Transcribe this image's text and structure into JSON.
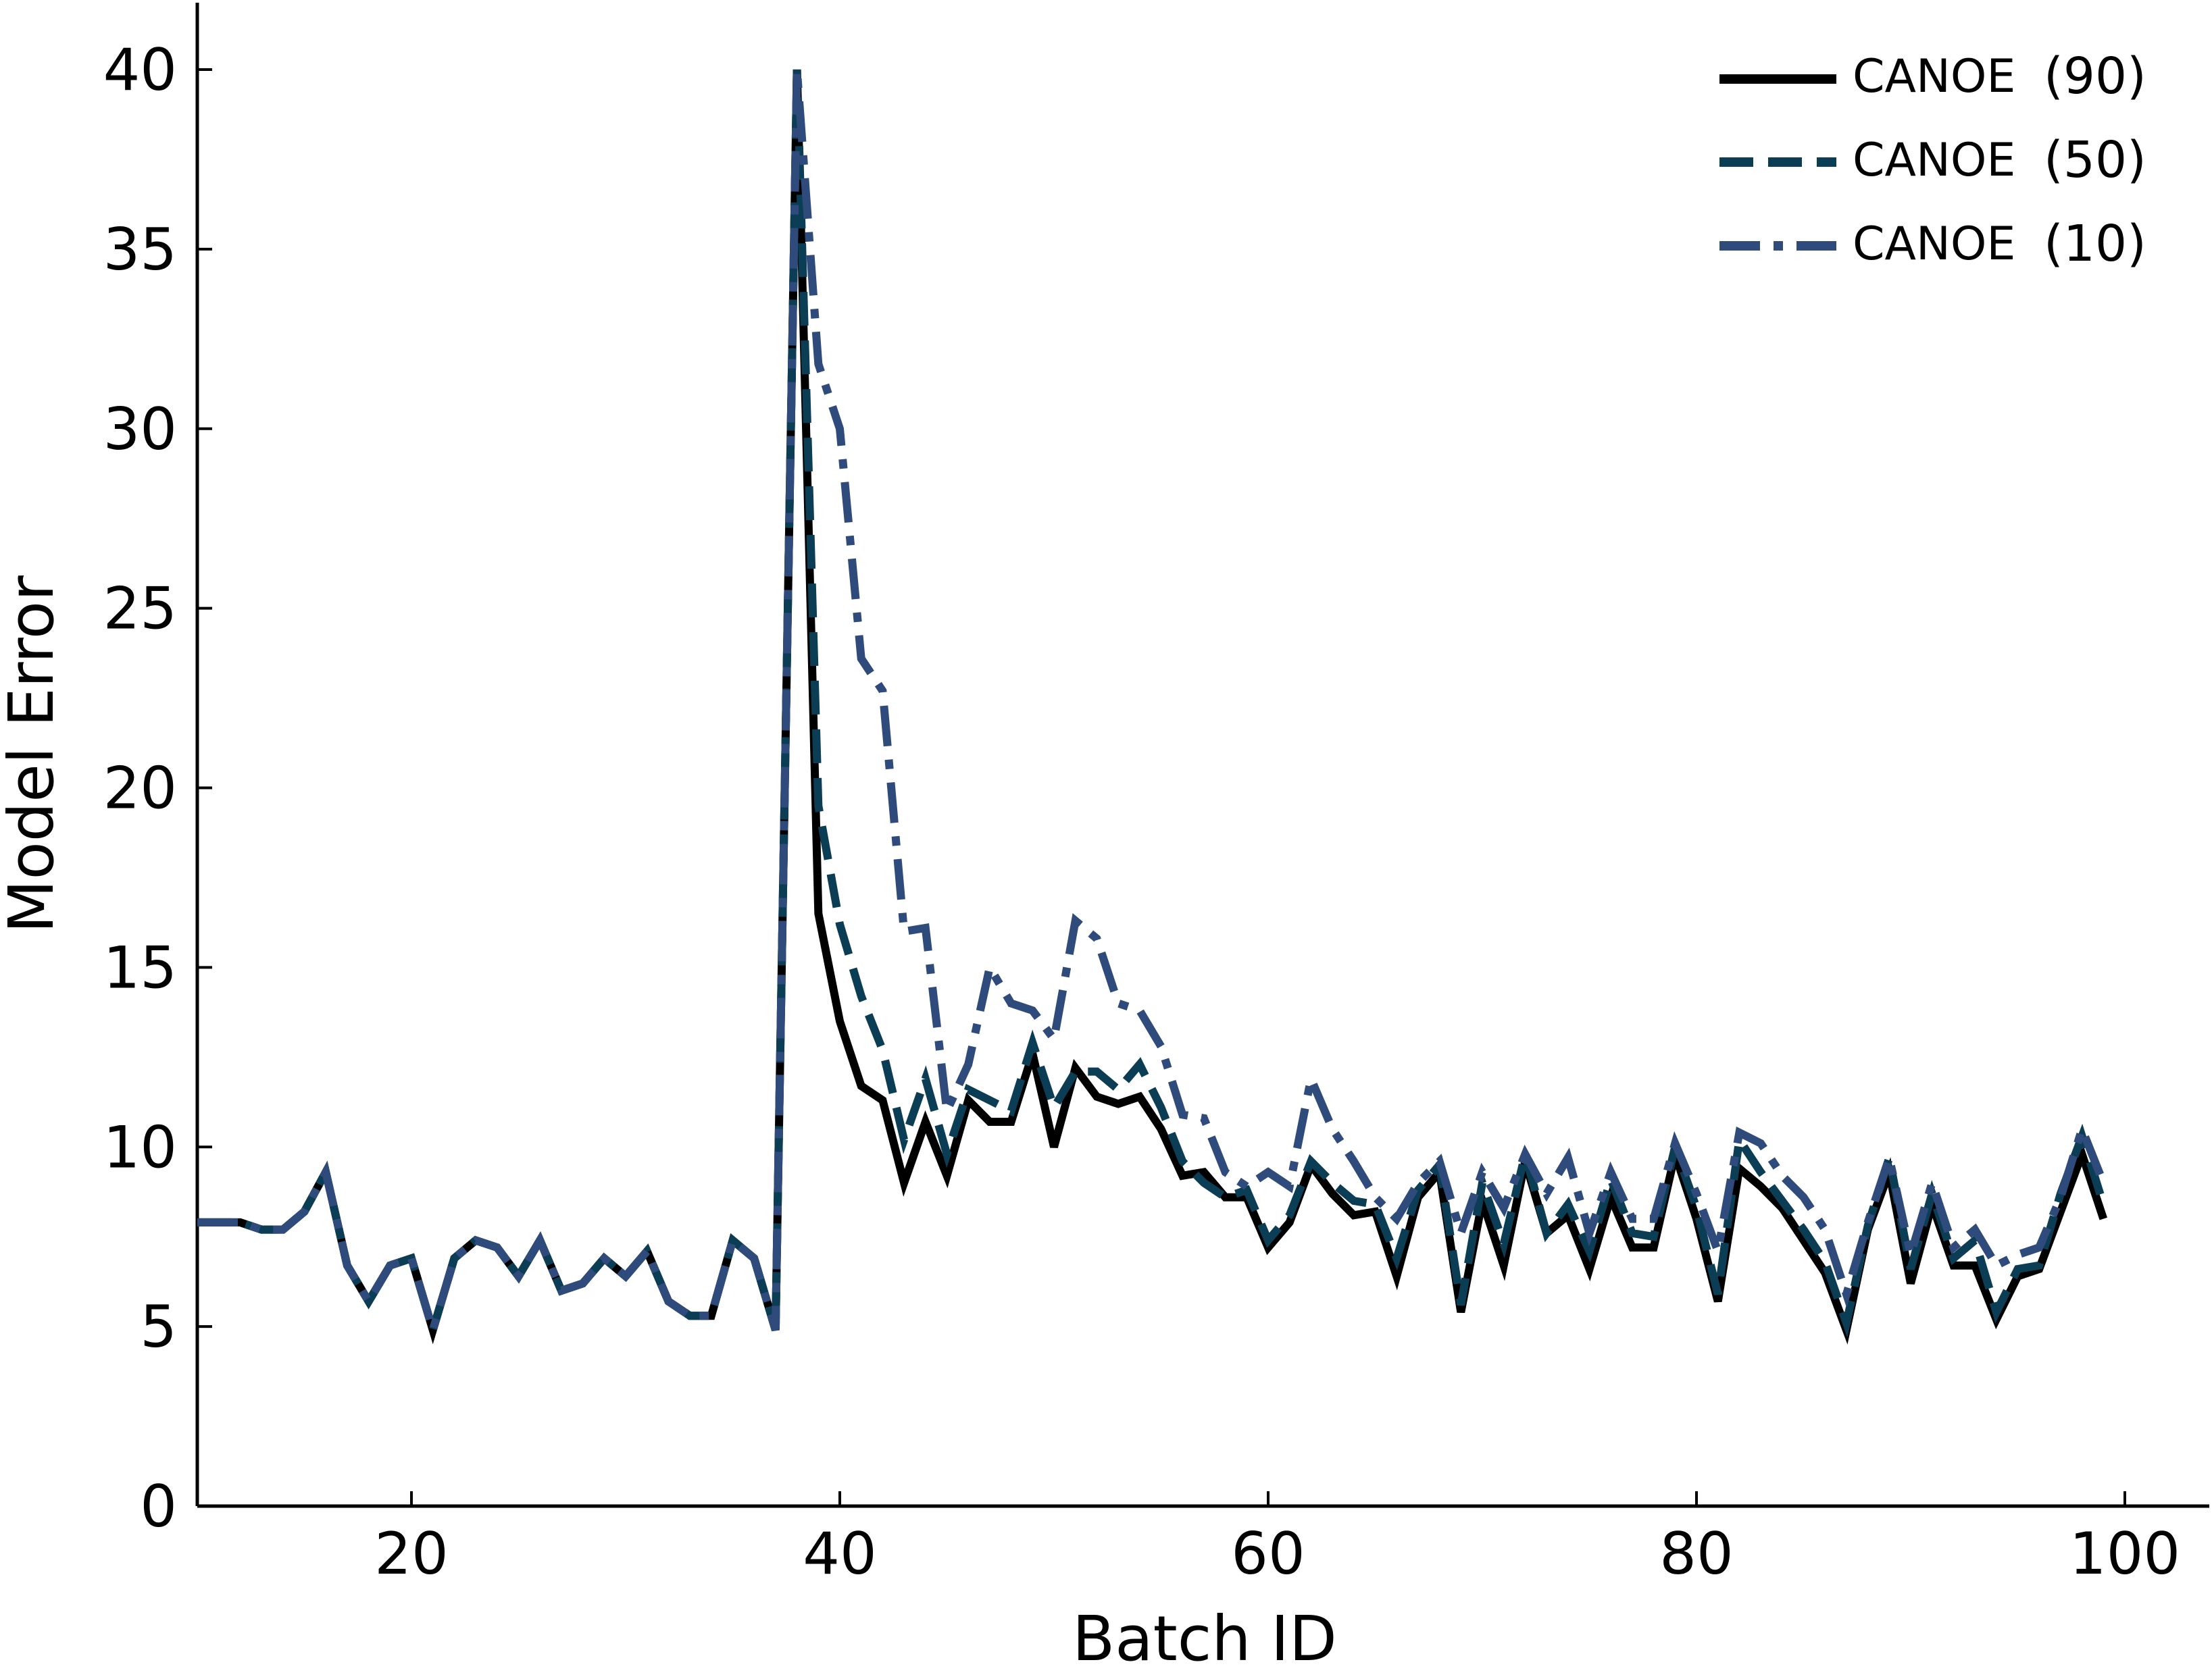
{
  "chart_data": {
    "type": "line",
    "xlabel": "Batch ID",
    "ylabel": "Model Error",
    "xlim": [
      10,
      104
    ],
    "ylim": [
      0,
      42
    ],
    "xticks": [
      20,
      40,
      60,
      80,
      100
    ],
    "yticks": [
      0,
      5,
      10,
      15,
      20,
      25,
      30,
      35,
      40
    ],
    "grid": false,
    "legend_position": "top-right",
    "series": [
      {
        "name": "CANOE",
        "suffix": "(90)",
        "color": "#000000",
        "style": "solid",
        "x": [
          10,
          11,
          12,
          13,
          14,
          15,
          16,
          17,
          18,
          19,
          20,
          21,
          22,
          23,
          24,
          25,
          26,
          27,
          28,
          29,
          30,
          31,
          32,
          33,
          34,
          35,
          36,
          37,
          38,
          39,
          40,
          41,
          42,
          43,
          44,
          45,
          46,
          47,
          48,
          49,
          50,
          51,
          52,
          53,
          54,
          55,
          56,
          57,
          58,
          59,
          60,
          61,
          62,
          63,
          64,
          65,
          66,
          67,
          68,
          69,
          70,
          71,
          72,
          73,
          74,
          75,
          76,
          77,
          78,
          79,
          80,
          81,
          82,
          83,
          84,
          85,
          86,
          87,
          88,
          89,
          90,
          91,
          92,
          93,
          94,
          95,
          96,
          97,
          98,
          99
        ],
        "values": [
          7.9,
          7.9,
          7.9,
          7.7,
          7.7,
          8.2,
          9.3,
          6.7,
          5.7,
          6.7,
          6.9,
          4.9,
          6.9,
          7.4,
          7.2,
          6.4,
          7.4,
          6.0,
          6.2,
          6.9,
          6.4,
          7.1,
          5.7,
          5.3,
          5.3,
          7.4,
          6.9,
          4.9,
          40.0,
          16.5,
          13.5,
          11.7,
          11.3,
          9.0,
          10.7,
          9.2,
          11.3,
          10.7,
          10.7,
          12.6,
          10.0,
          12.2,
          11.4,
          11.2,
          11.4,
          10.5,
          9.2,
          9.3,
          8.6,
          8.6,
          7.2,
          7.9,
          9.5,
          8.7,
          8.1,
          8.2,
          6.4,
          8.6,
          9.3,
          5.4,
          8.5,
          6.7,
          9.6,
          7.6,
          8.1,
          6.6,
          8.6,
          7.2,
          7.2,
          9.8,
          8.0,
          5.7,
          9.4,
          8.9,
          8.3,
          7.4,
          6.5,
          4.9,
          7.7,
          9.3,
          6.2,
          8.4,
          6.7,
          6.7,
          5.2,
          6.4,
          6.6,
          8.2,
          9.8,
          8.0
        ]
      },
      {
        "name": "CANOE",
        "suffix": "(50)",
        "color": "#0b3d55",
        "style": "dashed",
        "x": [
          10,
          11,
          12,
          13,
          14,
          15,
          16,
          17,
          18,
          19,
          20,
          21,
          22,
          23,
          24,
          25,
          26,
          27,
          28,
          29,
          30,
          31,
          32,
          33,
          34,
          35,
          36,
          37,
          38,
          39,
          40,
          41,
          42,
          43,
          44,
          45,
          46,
          47,
          48,
          49,
          50,
          51,
          52,
          53,
          54,
          55,
          56,
          57,
          58,
          59,
          60,
          61,
          62,
          63,
          64,
          65,
          66,
          67,
          68,
          69,
          70,
          71,
          72,
          73,
          74,
          75,
          76,
          77,
          78,
          79,
          80,
          81,
          82,
          83,
          84,
          85,
          86,
          87,
          88,
          89,
          90,
          91,
          92,
          93,
          94,
          95,
          96,
          97,
          98,
          99
        ],
        "values": [
          7.9,
          7.9,
          7.9,
          7.7,
          7.7,
          8.2,
          9.3,
          6.7,
          5.7,
          6.7,
          6.9,
          4.9,
          6.9,
          7.4,
          7.2,
          6.4,
          7.4,
          6.0,
          6.2,
          6.9,
          6.4,
          7.1,
          5.7,
          5.3,
          5.3,
          7.4,
          6.9,
          4.9,
          40.0,
          19.5,
          16.2,
          14.2,
          12.7,
          10.2,
          11.9,
          9.8,
          11.6,
          11.3,
          11.0,
          12.9,
          11.1,
          12.1,
          12.1,
          11.6,
          12.3,
          11.1,
          9.6,
          9.0,
          8.6,
          8.8,
          7.4,
          8.1,
          9.6,
          9.0,
          8.5,
          8.4,
          6.9,
          8.8,
          9.5,
          5.6,
          9.0,
          7.3,
          9.8,
          7.6,
          8.4,
          7.1,
          9.1,
          7.6,
          7.5,
          10.0,
          8.3,
          5.9,
          10.2,
          9.3,
          8.5,
          7.7,
          6.8,
          5.1,
          7.8,
          9.7,
          6.6,
          8.7,
          6.9,
          7.4,
          5.4,
          6.6,
          6.7,
          8.7,
          10.3,
          8.4
        ]
      },
      {
        "name": "CANOE",
        "suffix": "(10)",
        "color": "#2f4b7c",
        "style": "dashdot",
        "x": [
          10,
          11,
          12,
          13,
          14,
          15,
          16,
          17,
          18,
          19,
          20,
          21,
          22,
          23,
          24,
          25,
          26,
          27,
          28,
          29,
          30,
          31,
          32,
          33,
          34,
          35,
          36,
          37,
          38,
          39,
          40,
          41,
          42,
          43,
          44,
          45,
          46,
          47,
          48,
          49,
          50,
          51,
          52,
          53,
          54,
          55,
          56,
          57,
          58,
          59,
          60,
          61,
          62,
          63,
          64,
          65,
          66,
          67,
          68,
          69,
          70,
          71,
          72,
          73,
          74,
          75,
          76,
          77,
          78,
          79,
          80,
          81,
          82,
          83,
          84,
          85,
          86,
          87,
          88,
          89,
          90,
          91,
          92,
          93,
          94,
          95,
          96,
          97,
          98,
          99
        ],
        "values": [
          7.9,
          7.9,
          7.9,
          7.7,
          7.7,
          8.2,
          9.3,
          6.7,
          5.7,
          6.7,
          6.9,
          4.9,
          6.9,
          7.4,
          7.2,
          6.4,
          7.4,
          6.0,
          6.2,
          6.9,
          6.4,
          7.1,
          5.7,
          5.3,
          5.3,
          7.4,
          6.9,
          4.9,
          40.0,
          31.8,
          30.0,
          23.6,
          22.7,
          16.0,
          16.1,
          11.0,
          12.3,
          15.0,
          14.0,
          13.8,
          13.0,
          16.3,
          15.8,
          14.0,
          13.8,
          12.8,
          10.9,
          10.8,
          9.3,
          8.9,
          9.3,
          8.9,
          11.9,
          10.5,
          9.6,
          8.6,
          8.0,
          9.0,
          9.6,
          7.6,
          9.3,
          8.3,
          9.8,
          8.7,
          9.7,
          7.6,
          9.3,
          8.0,
          8.0,
          10.1,
          8.7,
          7.1,
          10.4,
          10.1,
          9.2,
          8.6,
          7.7,
          5.9,
          7.9,
          9.7,
          7.0,
          9.0,
          7.2,
          7.7,
          6.7,
          7.0,
          7.2,
          8.6,
          10.5,
          9.0
        ]
      }
    ]
  }
}
